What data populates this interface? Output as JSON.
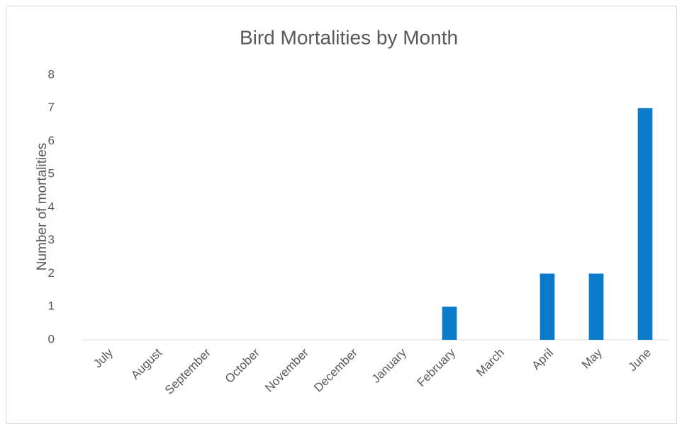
{
  "chart_data": {
    "type": "bar",
    "title": "Bird Mortalities by Month",
    "y_label": "Number of mortalities",
    "categories": [
      "July",
      "August",
      "September",
      "October",
      "November",
      "December",
      "January",
      "February",
      "March",
      "April",
      "May",
      "June"
    ],
    "values": [
      0,
      0,
      0,
      0,
      0,
      0,
      0,
      1,
      0,
      2,
      2,
      7
    ],
    "color": "#0a7bc9",
    "ylim": [
      0,
      8
    ],
    "yticks": [
      0,
      1,
      2,
      3,
      4,
      5,
      6,
      7,
      8
    ],
    "grid": false
  }
}
